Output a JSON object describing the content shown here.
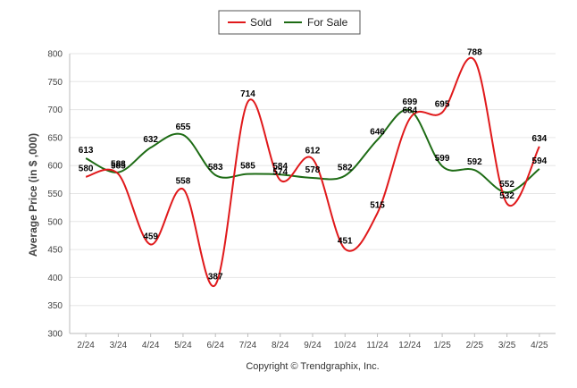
{
  "chart_data": {
    "type": "line",
    "categories": [
      "2/24",
      "3/24",
      "4/24",
      "5/24",
      "6/24",
      "7/24",
      "8/24",
      "9/24",
      "10/24",
      "11/24",
      "12/24",
      "1/25",
      "2/25",
      "3/25",
      "4/25"
    ],
    "series": [
      {
        "name": "Sold",
        "color": "#e0191b",
        "values": [
          580,
          585,
          459,
          558,
          387,
          714,
          574,
          612,
          451,
          515,
          684,
          695,
          788,
          532,
          634
        ]
      },
      {
        "name": "For Sale",
        "color": "#1d6b14",
        "values": [
          613,
          588,
          632,
          655,
          583,
          585,
          584,
          578,
          582,
          646,
          699,
          599,
          592,
          552,
          594
        ]
      }
    ],
    "ylabel": "Average Price (in $ ,000)",
    "xlabel": "",
    "ylim": [
      300,
      800
    ],
    "yticks": [
      300,
      350,
      400,
      450,
      500,
      550,
      600,
      650,
      700,
      750,
      800
    ],
    "grid": true,
    "legend_position": "top-center",
    "footer": "Copyright © Trendgraphix, Inc."
  }
}
